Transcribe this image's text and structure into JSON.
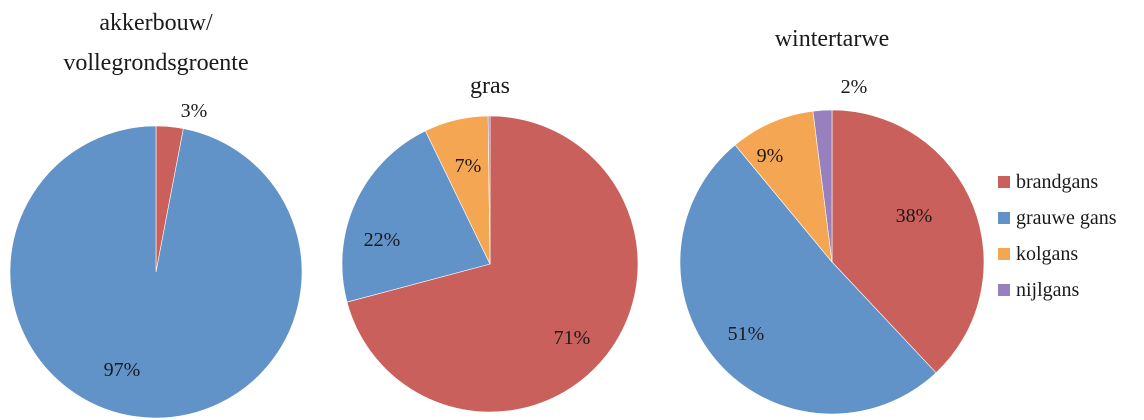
{
  "chart_data": [
    {
      "type": "pie",
      "title_lines": [
        "akkerbouw/",
        "vollegrondsgroente"
      ],
      "slices": [
        {
          "name": "brandgans",
          "value": 3,
          "label": "3%"
        },
        {
          "name": "grauwe gans",
          "value": 97,
          "label": "97%"
        },
        {
          "name": "kolgans",
          "value": 0,
          "label": ""
        },
        {
          "name": "nijlgans",
          "value": 0,
          "label": ""
        }
      ]
    },
    {
      "type": "pie",
      "title_lines": [
        "gras"
      ],
      "slices": [
        {
          "name": "brandgans",
          "value": 71,
          "label": "71%"
        },
        {
          "name": "grauwe gans",
          "value": 22,
          "label": "22%"
        },
        {
          "name": "kolgans",
          "value": 7,
          "label": "7%"
        },
        {
          "name": "nijlgans",
          "value": 0.2,
          "label": ""
        }
      ]
    },
    {
      "type": "pie",
      "title_lines": [
        "wintertarwe"
      ],
      "slices": [
        {
          "name": "brandgans",
          "value": 38,
          "label": "38%"
        },
        {
          "name": "grauwe gans",
          "value": 51,
          "label": "51%"
        },
        {
          "name": "kolgans",
          "value": 9,
          "label": "9%"
        },
        {
          "name": "nijlgans",
          "value": 2,
          "label": "2%"
        }
      ]
    }
  ],
  "legend": {
    "position": "right",
    "items": [
      {
        "name": "brandgans",
        "color": "#c9605b"
      },
      {
        "name": "grauwe gans",
        "color": "#6193c9"
      },
      {
        "name": "kolgans",
        "color": "#f5a653"
      },
      {
        "name": "nijlgans",
        "color": "#9780bd"
      }
    ]
  }
}
